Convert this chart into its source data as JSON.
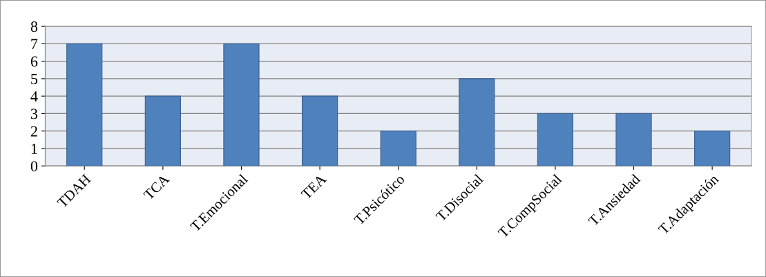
{
  "chart_data": {
    "type": "bar",
    "categories": [
      "TDAH",
      "TCA",
      "T.Emocional",
      "TEA",
      "T.Psicótico",
      "T.Disocial",
      "T.CompSocial",
      "T.Ansiedad",
      "T.Adaptación"
    ],
    "values": [
      7,
      4,
      7,
      4,
      2,
      5,
      3,
      3,
      2
    ],
    "color": "#4f81bd",
    "ylim": [
      0,
      8
    ],
    "yticks": [
      0,
      1,
      2,
      3,
      4,
      5,
      6,
      7,
      8
    ],
    "grid": "y",
    "legend": false
  }
}
